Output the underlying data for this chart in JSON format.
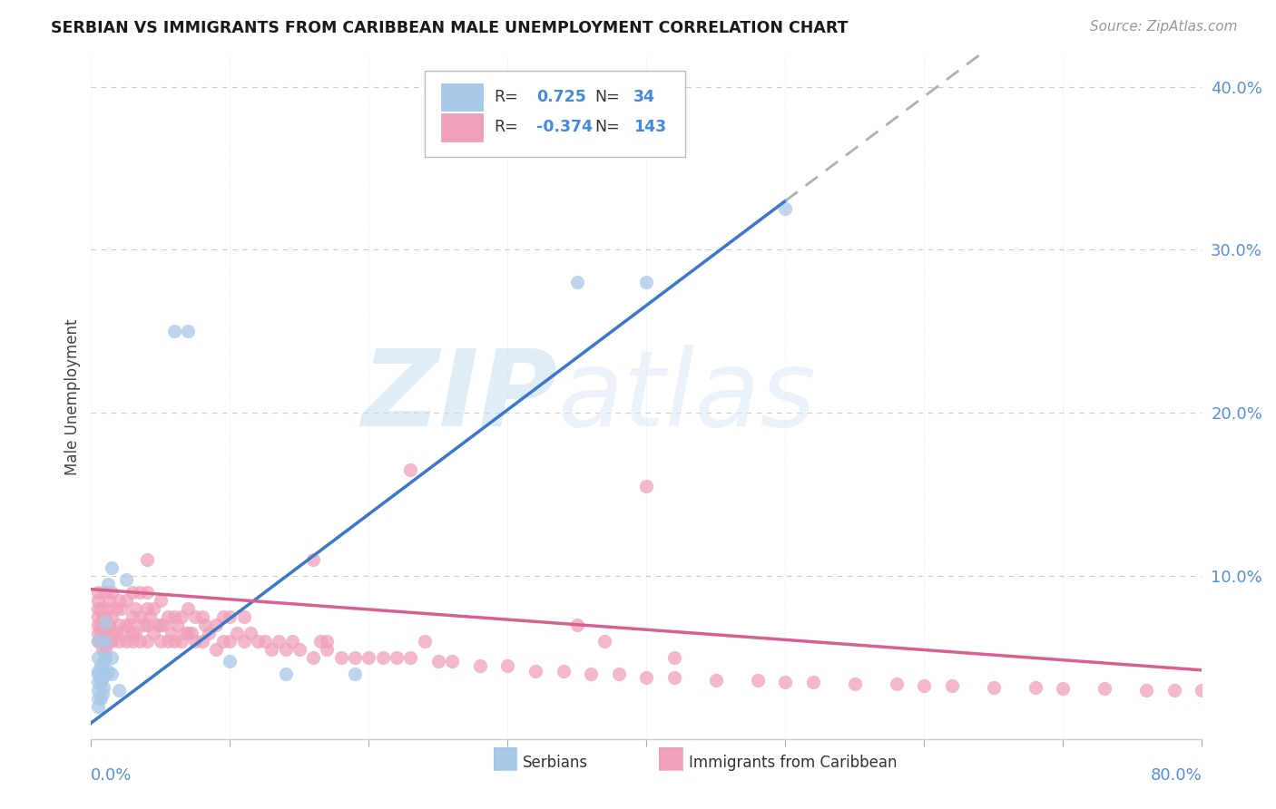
{
  "title": "SERBIAN VS IMMIGRANTS FROM CARIBBEAN MALE UNEMPLOYMENT CORRELATION CHART",
  "source": "Source: ZipAtlas.com",
  "ylabel": "Male Unemployment",
  "xlim": [
    0.0,
    0.8
  ],
  "ylim": [
    0.0,
    0.42
  ],
  "yticks": [
    0.1,
    0.2,
    0.3,
    0.4
  ],
  "ytick_labels": [
    "10.0%",
    "20.0%",
    "30.0%",
    "40.0%"
  ],
  "color_serbian": "#a8c8e8",
  "color_caribbean": "#f0a0b8",
  "color_regression_serbian": "#3a78c9",
  "color_regression_caribbean": "#d86090",
  "color_dashed": "#b0b0b0",
  "watermark_zip": "ZIP",
  "watermark_atlas": "atlas",
  "background_color": "#ffffff",
  "serbian_x": [
    0.005,
    0.005,
    0.005,
    0.005,
    0.005,
    0.005,
    0.005,
    0.005,
    0.007,
    0.007,
    0.007,
    0.008,
    0.008,
    0.009,
    0.009,
    0.01,
    0.01,
    0.01,
    0.01,
    0.012,
    0.012,
    0.015,
    0.015,
    0.015,
    0.02,
    0.025,
    0.06,
    0.07,
    0.1,
    0.14,
    0.19,
    0.35,
    0.4,
    0.5
  ],
  "serbian_y": [
    0.02,
    0.025,
    0.03,
    0.035,
    0.04,
    0.042,
    0.05,
    0.06,
    0.025,
    0.035,
    0.045,
    0.028,
    0.038,
    0.032,
    0.048,
    0.04,
    0.05,
    0.06,
    0.072,
    0.042,
    0.095,
    0.04,
    0.05,
    0.105,
    0.03,
    0.098,
    0.25,
    0.25,
    0.048,
    0.04,
    0.04,
    0.28,
    0.28,
    0.325
  ],
  "caribbean_x": [
    0.005,
    0.005,
    0.005,
    0.005,
    0.005,
    0.005,
    0.005,
    0.007,
    0.007,
    0.007,
    0.007,
    0.008,
    0.008,
    0.008,
    0.009,
    0.009,
    0.01,
    0.01,
    0.01,
    0.01,
    0.012,
    0.012,
    0.012,
    0.013,
    0.013,
    0.013,
    0.015,
    0.015,
    0.015,
    0.015,
    0.018,
    0.018,
    0.02,
    0.02,
    0.02,
    0.022,
    0.022,
    0.025,
    0.025,
    0.025,
    0.028,
    0.03,
    0.03,
    0.03,
    0.03,
    0.032,
    0.032,
    0.035,
    0.035,
    0.035,
    0.038,
    0.04,
    0.04,
    0.04,
    0.04,
    0.04,
    0.042,
    0.045,
    0.045,
    0.048,
    0.05,
    0.05,
    0.05,
    0.052,
    0.055,
    0.055,
    0.058,
    0.06,
    0.06,
    0.062,
    0.065,
    0.065,
    0.068,
    0.07,
    0.07,
    0.072,
    0.075,
    0.075,
    0.08,
    0.08,
    0.082,
    0.085,
    0.09,
    0.09,
    0.095,
    0.095,
    0.1,
    0.1,
    0.105,
    0.11,
    0.11,
    0.115,
    0.12,
    0.125,
    0.13,
    0.135,
    0.14,
    0.145,
    0.15,
    0.16,
    0.165,
    0.17,
    0.18,
    0.19,
    0.2,
    0.21,
    0.22,
    0.23,
    0.25,
    0.26,
    0.28,
    0.3,
    0.32,
    0.34,
    0.36,
    0.38,
    0.4,
    0.42,
    0.45,
    0.48,
    0.5,
    0.52,
    0.55,
    0.58,
    0.6,
    0.62,
    0.65,
    0.68,
    0.7,
    0.73,
    0.76,
    0.78,
    0.8,
    0.4,
    0.42,
    0.16,
    0.17,
    0.23,
    0.24,
    0.35,
    0.37
  ],
  "caribbean_y": [
    0.06,
    0.065,
    0.07,
    0.075,
    0.08,
    0.085,
    0.09,
    0.06,
    0.065,
    0.07,
    0.08,
    0.055,
    0.065,
    0.075,
    0.06,
    0.075,
    0.055,
    0.065,
    0.075,
    0.09,
    0.06,
    0.07,
    0.08,
    0.06,
    0.07,
    0.085,
    0.06,
    0.065,
    0.075,
    0.09,
    0.065,
    0.08,
    0.06,
    0.07,
    0.085,
    0.065,
    0.08,
    0.06,
    0.07,
    0.085,
    0.07,
    0.06,
    0.065,
    0.075,
    0.09,
    0.065,
    0.08,
    0.06,
    0.075,
    0.09,
    0.07,
    0.06,
    0.07,
    0.08,
    0.09,
    0.11,
    0.075,
    0.065,
    0.08,
    0.07,
    0.06,
    0.07,
    0.085,
    0.07,
    0.06,
    0.075,
    0.065,
    0.06,
    0.075,
    0.07,
    0.06,
    0.075,
    0.065,
    0.065,
    0.08,
    0.065,
    0.06,
    0.075,
    0.06,
    0.075,
    0.07,
    0.065,
    0.055,
    0.07,
    0.06,
    0.075,
    0.06,
    0.075,
    0.065,
    0.06,
    0.075,
    0.065,
    0.06,
    0.06,
    0.055,
    0.06,
    0.055,
    0.06,
    0.055,
    0.05,
    0.06,
    0.055,
    0.05,
    0.05,
    0.05,
    0.05,
    0.05,
    0.05,
    0.048,
    0.048,
    0.045,
    0.045,
    0.042,
    0.042,
    0.04,
    0.04,
    0.038,
    0.038,
    0.036,
    0.036,
    0.035,
    0.035,
    0.034,
    0.034,
    0.033,
    0.033,
    0.032,
    0.032,
    0.031,
    0.031,
    0.03,
    0.03,
    0.03,
    0.155,
    0.05,
    0.11,
    0.06,
    0.165,
    0.06,
    0.07,
    0.06
  ]
}
